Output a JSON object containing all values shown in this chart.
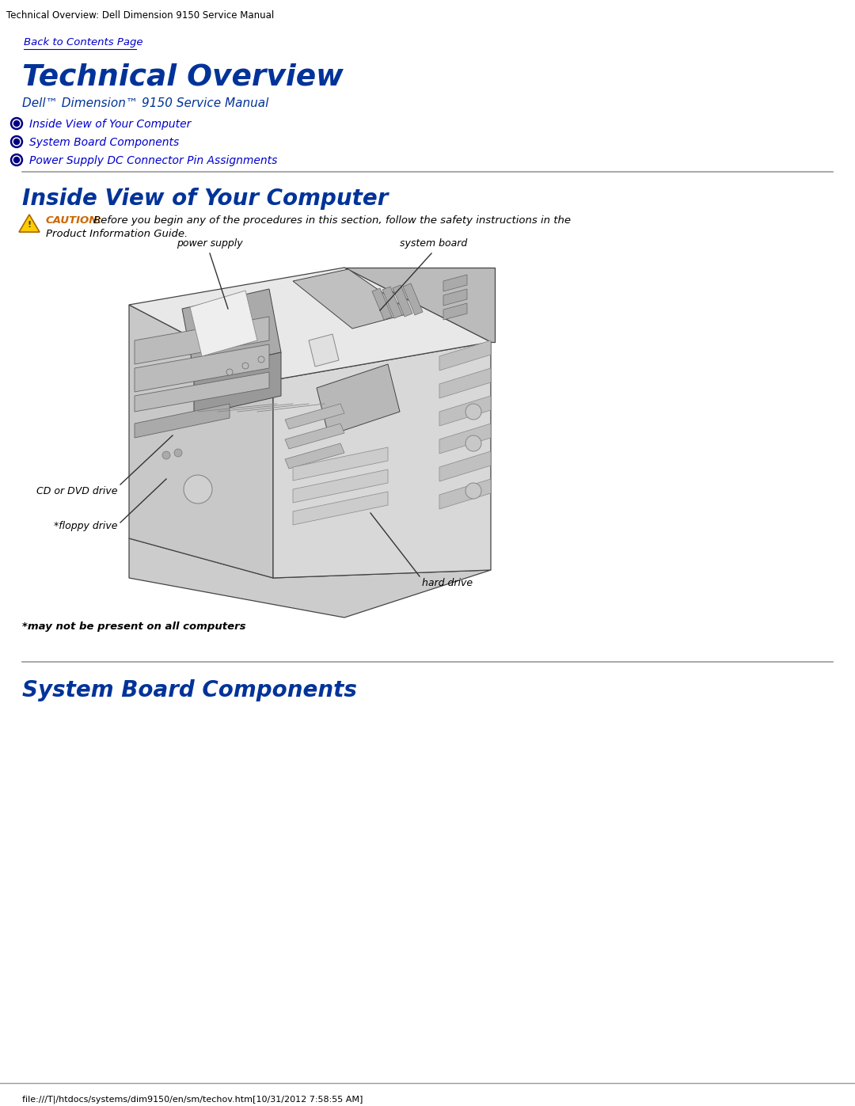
{
  "bg_color": "#ffffff",
  "page_title": "Technical Overview: Dell Dimension 9150 Service Manual",
  "back_link": "Back to Contents Page",
  "main_title": "Technical Overview",
  "subtitle": "Dell™ Dimension™ 9150 Service Manual",
  "nav_links": [
    "Inside View of Your Computer",
    "System Board Components",
    "Power Supply DC Connector Pin Assignments"
  ],
  "section1_title": "Inside View of Your Computer",
  "caution_label": "CAUTION:",
  "caution_line1": "Before you begin any of the procedures in this section, follow the safety instructions in the",
  "caution_line2": "Product Information Guide.",
  "footnote": "*may not be present on all computers",
  "section2_title": "System Board Components",
  "footer_text": "file:///T|/htdocs/systems/dim9150/en/sm/techov.htm[10/31/2012 7:58:55 AM]",
  "link_color": "#0000cc",
  "title_color": "#003399",
  "section_title_color": "#003399",
  "text_color": "#000000",
  "caution_color": "#cc6600",
  "nav_bullet_color": "#000080",
  "line_color": "#999999",
  "label_power_supply": "power supply",
  "label_system_board": "system board",
  "label_cd_dvd": "CD or DVD drive",
  "label_floppy": "*floppy drive",
  "label_hard_drive": "hard drive"
}
